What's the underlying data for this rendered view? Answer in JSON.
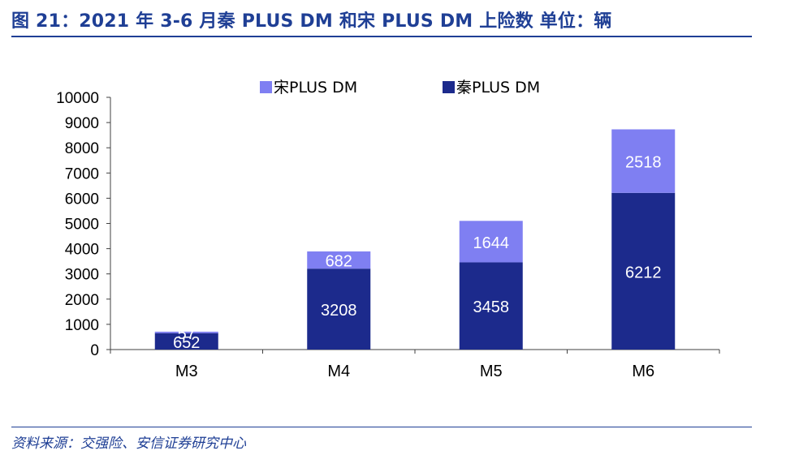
{
  "figure": {
    "title": "图 21：2021 年 3-6 月秦 PLUS DM 和宋 PLUS DM 上险数 单位：辆",
    "source": "资料来源：交强险、安信证券研究中心"
  },
  "colors": {
    "title": "#1f3f95",
    "song": "#7f7ff2",
    "qin": "#1c2a8c",
    "axis": "#404040"
  },
  "chart_data": {
    "type": "bar",
    "stacked": true,
    "categories": [
      "M3",
      "M4",
      "M5",
      "M6"
    ],
    "series": [
      {
        "name": "秦PLUS DM",
        "values": [
          652,
          3208,
          3458,
          6212
        ],
        "color": "#1c2a8c"
      },
      {
        "name": "宋PLUS DM",
        "values": [
          57,
          682,
          1644,
          2518
        ],
        "color": "#7f7ff2"
      }
    ],
    "y_ticks": [
      0,
      1000,
      2000,
      3000,
      4000,
      5000,
      6000,
      7000,
      8000,
      9000,
      10000
    ],
    "ylim": [
      0,
      10000
    ],
    "data_labels": [
      [
        "652",
        "3208",
        "3458",
        "6212"
      ],
      [
        "57",
        "682",
        "1644",
        "2518"
      ]
    ],
    "legend": {
      "position": "top",
      "order": [
        "宋PLUS DM",
        "秦PLUS DM"
      ]
    },
    "grid": false
  }
}
